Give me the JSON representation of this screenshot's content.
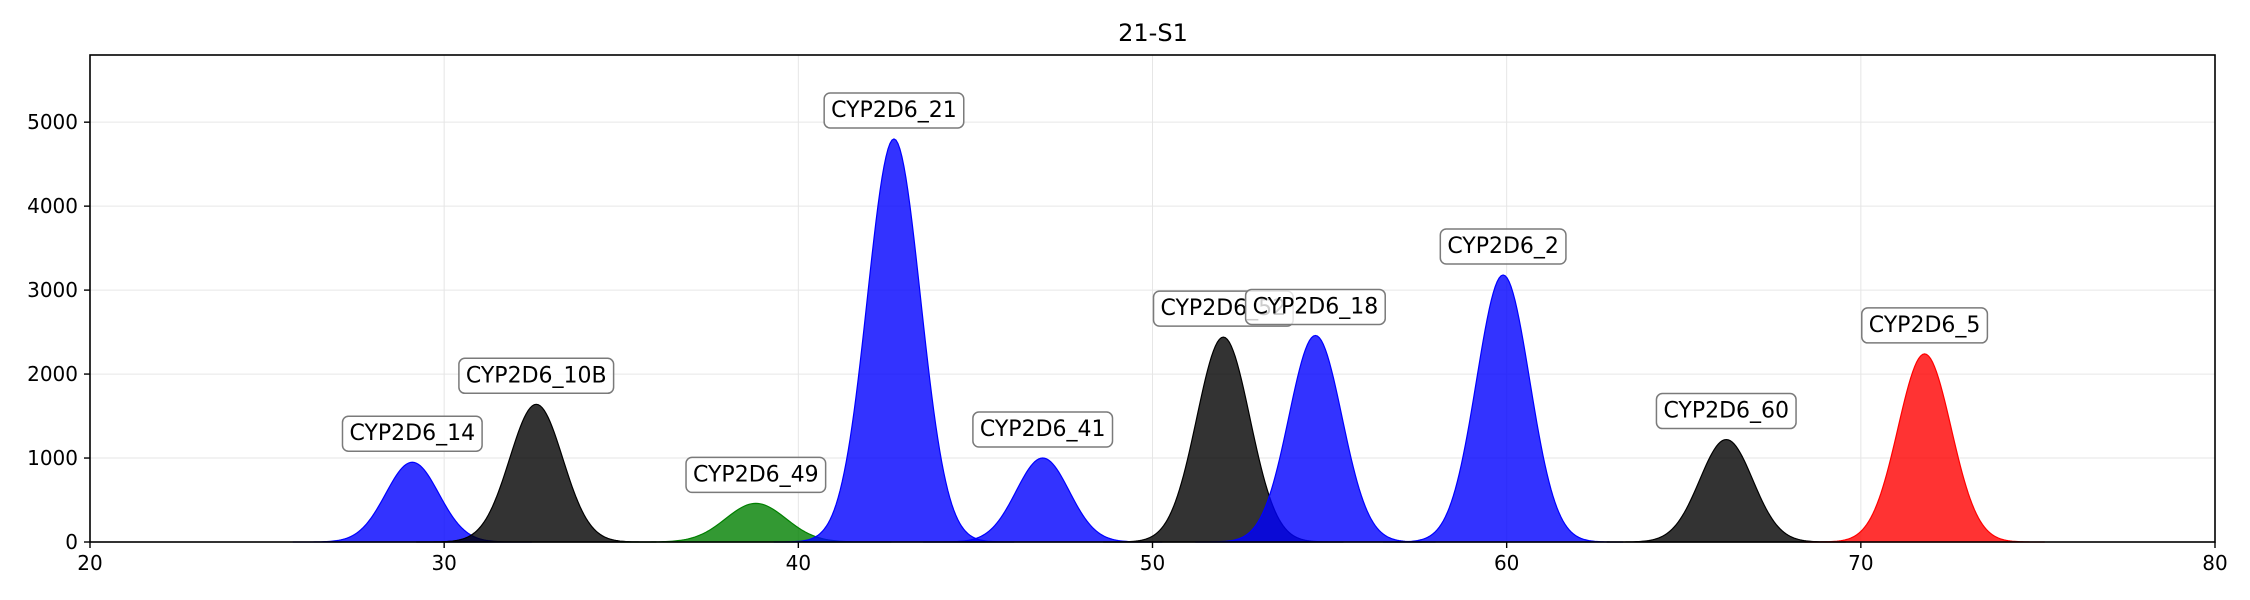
{
  "chart_data": {
    "type": "area",
    "title": "21-S1",
    "xlabel": "",
    "ylabel": "",
    "xlim": [
      20,
      80
    ],
    "ylim": [
      0,
      5800
    ],
    "xticks": [
      20,
      30,
      40,
      50,
      60,
      70,
      80
    ],
    "yticks": [
      0,
      1000,
      2000,
      3000,
      4000,
      5000
    ],
    "grid": true,
    "peaks": [
      {
        "label": "CYP2D6_14",
        "center": 29.1,
        "height": 950,
        "sigma": 0.75,
        "color": "#0000ff"
      },
      {
        "label": "CYP2D6_10B",
        "center": 32.6,
        "height": 1640,
        "sigma": 0.75,
        "color": "#000000"
      },
      {
        "label": "CYP2D6_49",
        "center": 38.8,
        "height": 460,
        "sigma": 0.85,
        "color": "#008000"
      },
      {
        "label": "CYP2D6_21",
        "center": 42.7,
        "height": 4800,
        "sigma": 0.75,
        "color": "#0000ff"
      },
      {
        "label": "CYP2D6_41",
        "center": 46.9,
        "height": 1000,
        "sigma": 0.75,
        "color": "#0000ff"
      },
      {
        "label": "CYP2D6_52",
        "center": 52.0,
        "height": 2440,
        "sigma": 0.75,
        "color": "#000000"
      },
      {
        "label": "CYP2D6_18",
        "center": 54.6,
        "height": 2460,
        "sigma": 0.75,
        "color": "#0000ff"
      },
      {
        "label": "CYP2D6_2",
        "center": 59.9,
        "height": 3180,
        "sigma": 0.75,
        "color": "#0000ff"
      },
      {
        "label": "CYP2D6_60",
        "center": 66.2,
        "height": 1220,
        "sigma": 0.75,
        "color": "#000000"
      },
      {
        "label": "CYP2D6_5",
        "center": 71.8,
        "height": 2240,
        "sigma": 0.75,
        "color": "#ff0000"
      }
    ]
  }
}
